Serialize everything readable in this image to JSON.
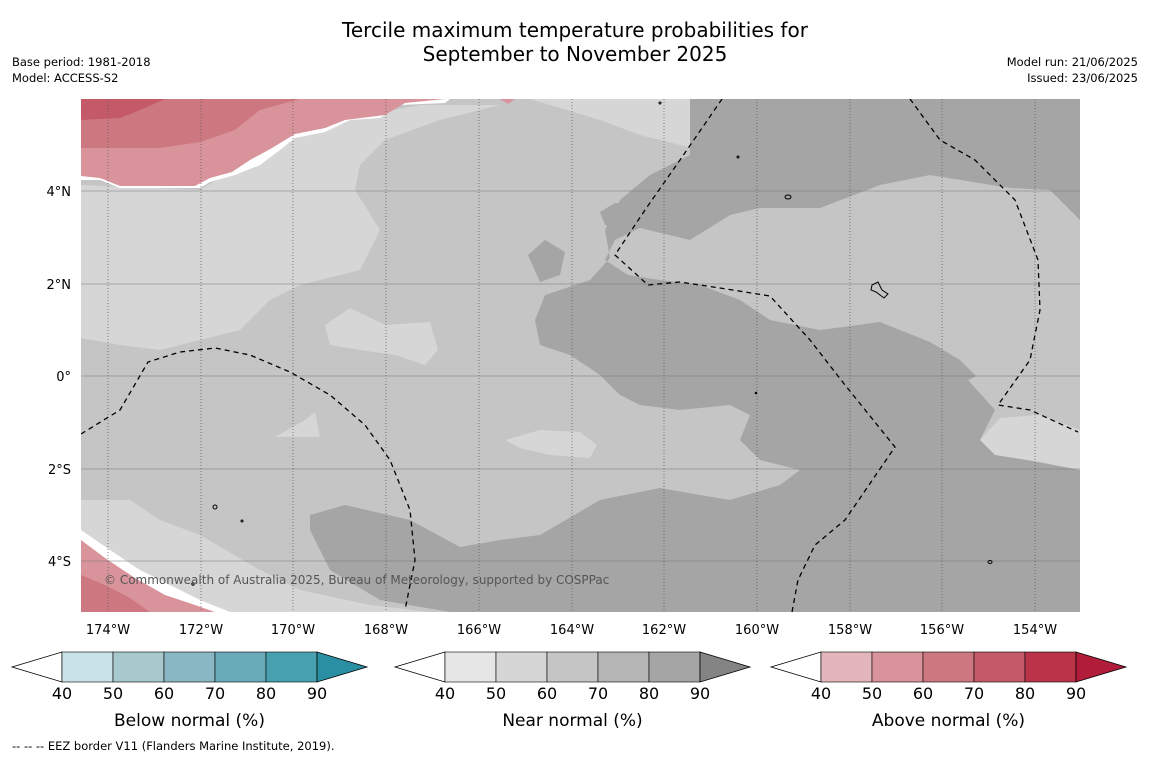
{
  "title": {
    "line1": "Tercile maximum temperature probabilities for",
    "line2": "September to November 2025"
  },
  "meta_left": {
    "base_period": "Base period: 1981-2018",
    "model": "Model: ACCESS-S2"
  },
  "meta_right": {
    "model_run": "Model run: 21/06/2025",
    "issued": "Issued: 23/06/2025"
  },
  "map": {
    "lon_range": [
      -174.6,
      -152.9
    ],
    "lat_range": [
      -5.0,
      6.0
    ],
    "lon_ticks": [
      {
        "value": -174,
        "label": "174°W"
      },
      {
        "value": -172,
        "label": "172°W"
      },
      {
        "value": -170,
        "label": "170°W"
      },
      {
        "value": -168,
        "label": "168°W"
      },
      {
        "value": -166,
        "label": "166°W"
      },
      {
        "value": -164,
        "label": "164°W"
      },
      {
        "value": -162,
        "label": "162°W"
      },
      {
        "value": -160,
        "label": "160°W"
      },
      {
        "value": -158,
        "label": "158°W"
      },
      {
        "value": -156,
        "label": "156°W"
      },
      {
        "value": -154,
        "label": "154°W"
      }
    ],
    "lat_ticks": [
      {
        "value": 4,
        "label": "4°N"
      },
      {
        "value": 2,
        "label": "2°N"
      },
      {
        "value": 0,
        "label": "0°"
      },
      {
        "value": -2,
        "label": "2°S"
      },
      {
        "value": -4,
        "label": "4°S"
      }
    ],
    "copyright": "© Commonwealth of Australia 2025, Bureau of Meteorology, supported by COSPPac"
  },
  "colorbars": [
    {
      "label": "Below normal (%)",
      "ticks": [
        "40",
        "50",
        "60",
        "70",
        "80",
        "90"
      ],
      "colors": [
        "#ffffff",
        "#c9e2e8",
        "#a7c8cc",
        "#89b7c4",
        "#6aabb9",
        "#47a1b0",
        "#2b8fa3"
      ]
    },
    {
      "label": "Near normal (%)",
      "ticks": [
        "40",
        "50",
        "60",
        "70",
        "80",
        "90"
      ],
      "colors": [
        "#ffffff",
        "#e6e6e6",
        "#d6d6d6",
        "#c5c5c5",
        "#b5b5b5",
        "#a5a5a5",
        "#848484"
      ]
    },
    {
      "label": "Above normal (%)",
      "ticks": [
        "40",
        "50",
        "60",
        "70",
        "80",
        "90"
      ],
      "colors": [
        "#ffffff",
        "#e3b6bb",
        "#d9939b",
        "#cd7880",
        "#c45a67",
        "#ba3349",
        "#b01c3a"
      ]
    }
  ],
  "footnote": "--  --  -- EEZ border V11 (Flanders Marine Institute, 2019)."
}
